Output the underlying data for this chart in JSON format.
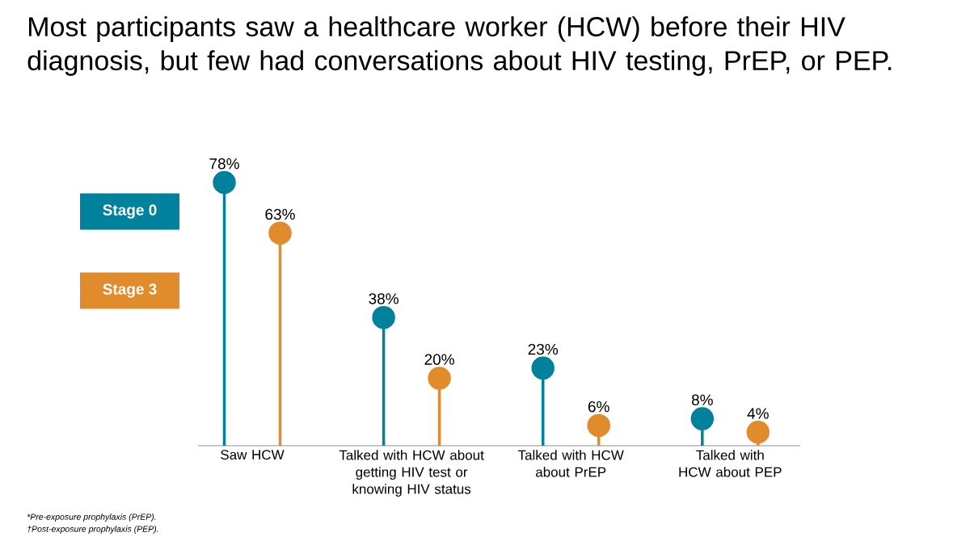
{
  "chart_data": {
    "type": "lollipop",
    "title": "Most participants saw a healthcare worker (HCW) before their HIV diagnosis, but few had conversations about HIV testing, PrEP, or PEP.",
    "categories": [
      "Saw HCW",
      "Talked with HCW about getting HIV test or knowing HIV status",
      "Talked with HCW about PrEP",
      "Talked with HCW about PEP"
    ],
    "series": [
      {
        "name": "Stage 0",
        "color": "#00819c",
        "values": [
          78,
          38,
          23,
          8
        ],
        "value_labels": [
          "78%",
          "38%",
          "23%",
          "8%"
        ]
      },
      {
        "name": "Stage 3",
        "color": "#e08b2c",
        "values": [
          63,
          20,
          6,
          4
        ],
        "value_labels": [
          "63%",
          "20%",
          "6%",
          "4%"
        ]
      }
    ],
    "marker": "circle",
    "legend": "left",
    "annotations": [
      "*Pre-exposure prophylaxis (PrEP).",
      "†Post-exposure prophylaxis (PEP)."
    ]
  }
}
